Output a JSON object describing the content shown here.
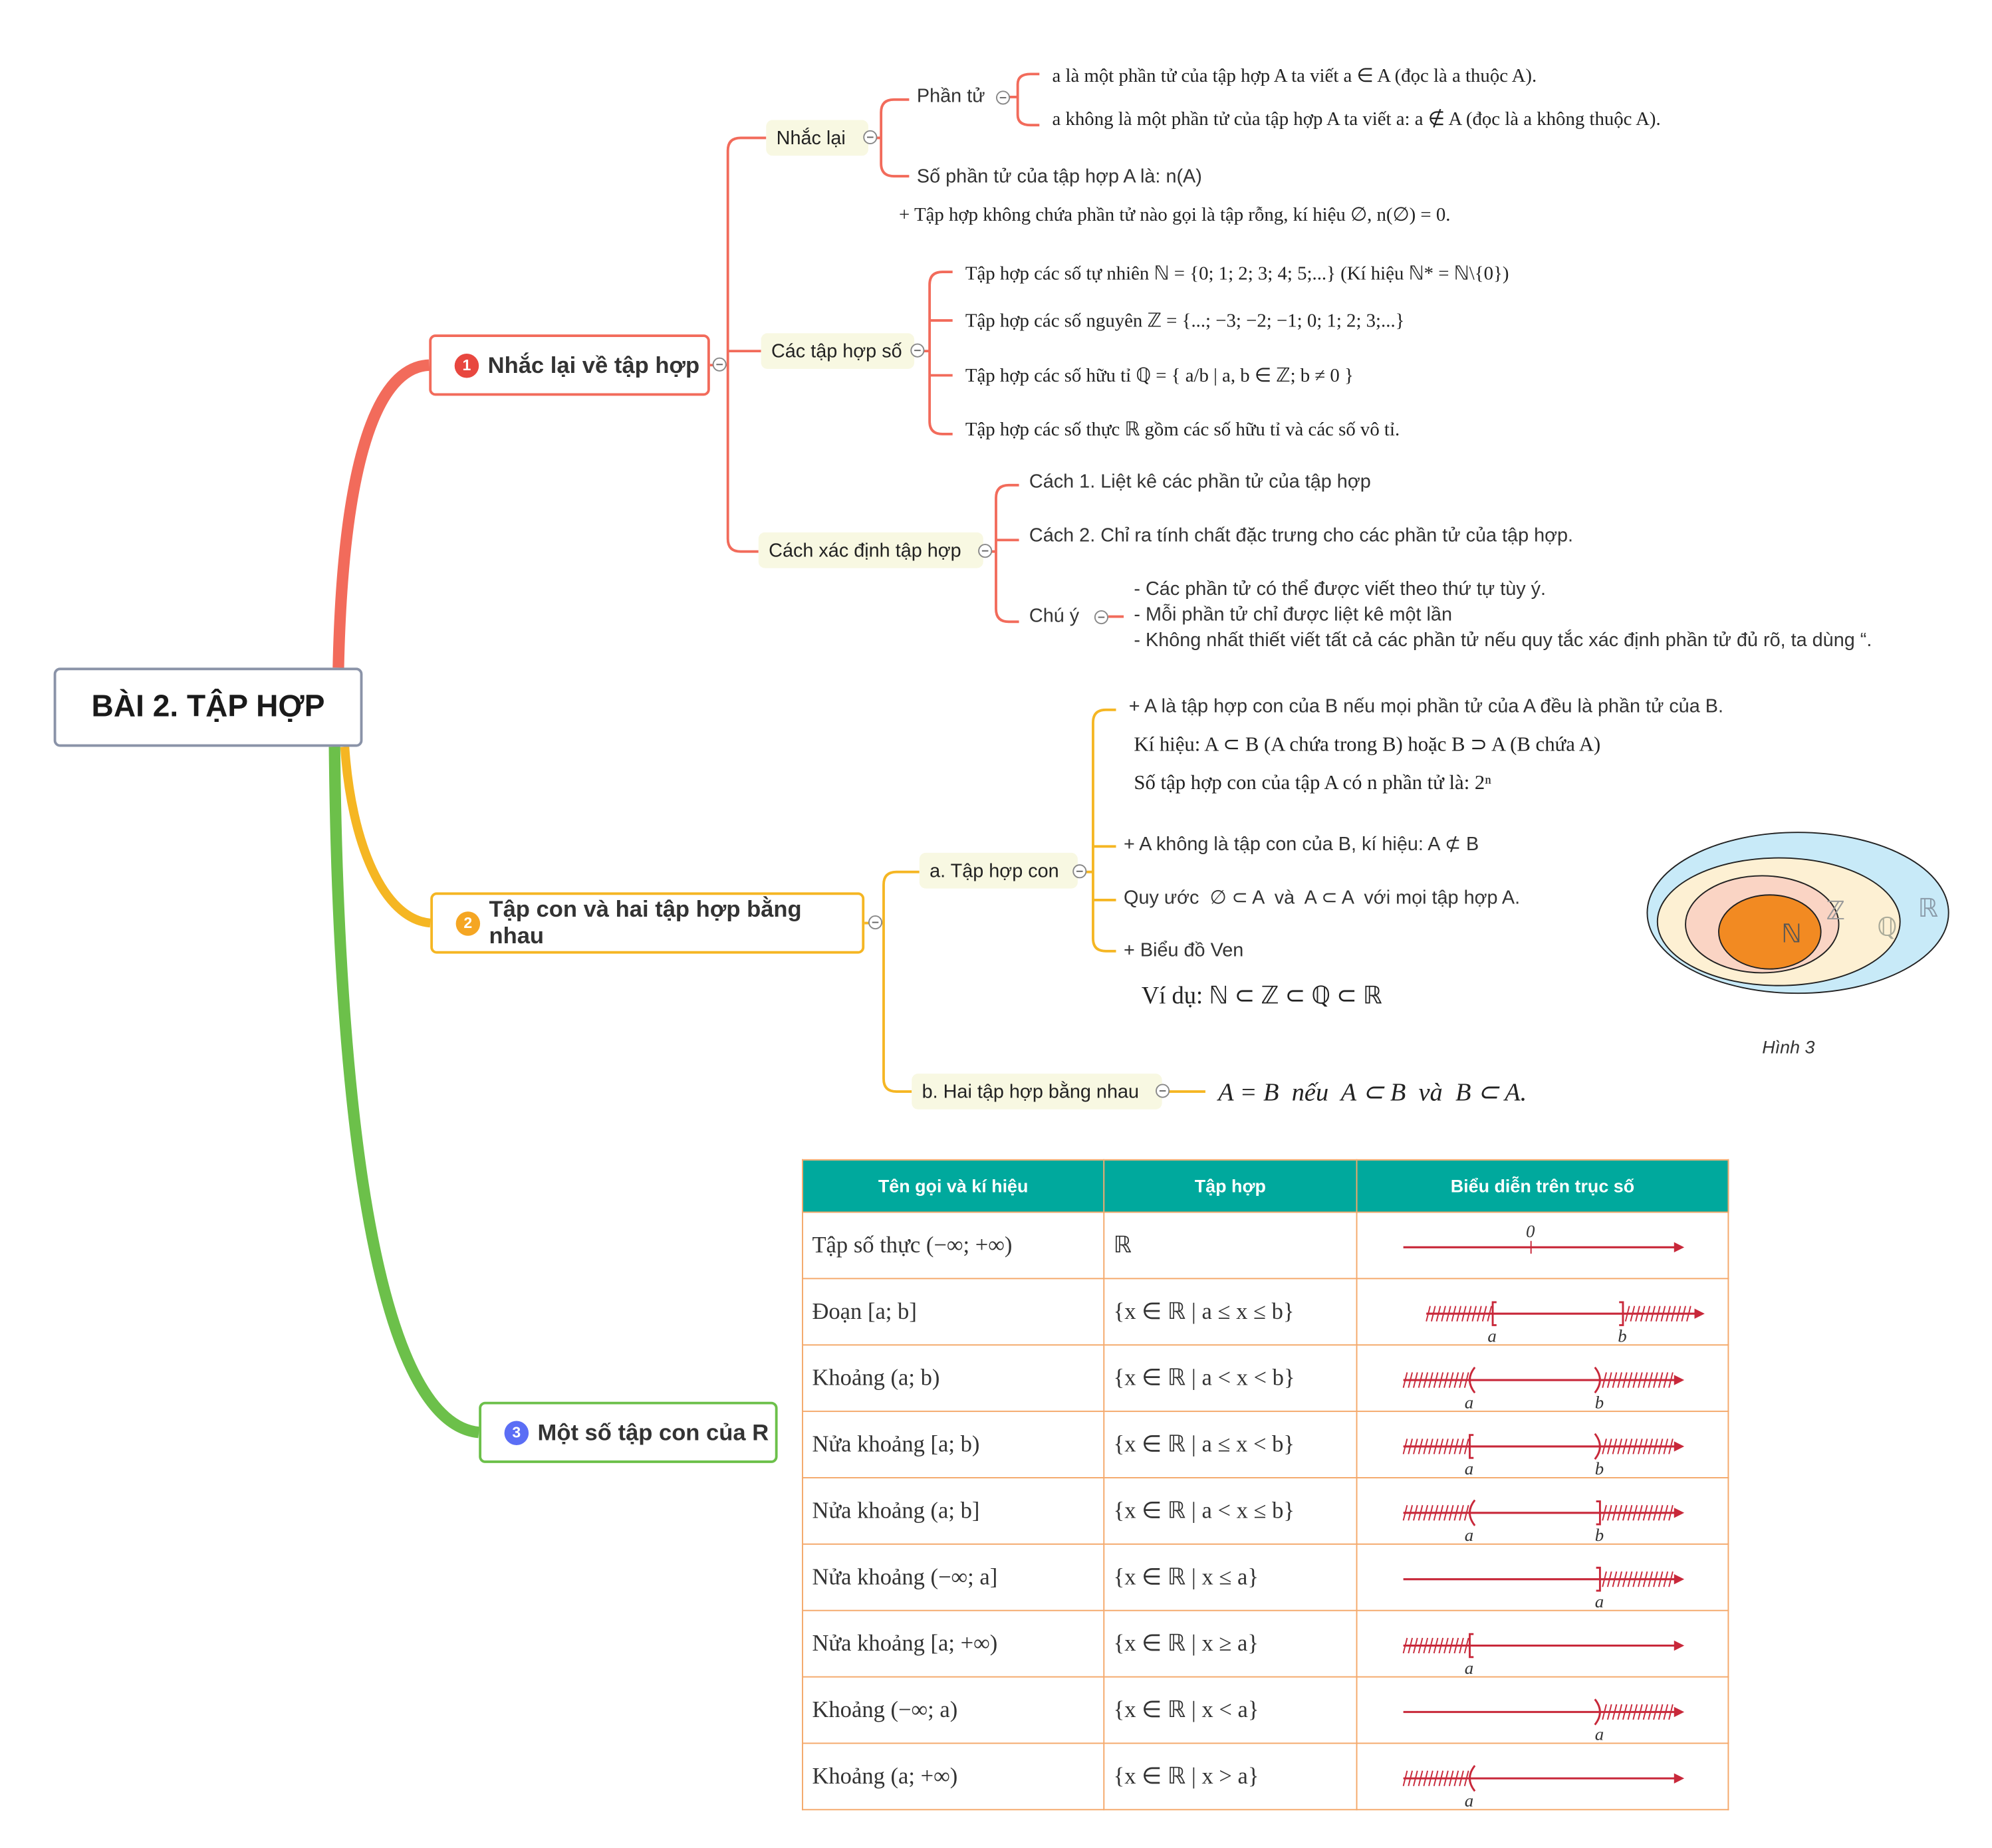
{
  "root": {
    "title": "BÀI 2. TẬP HỢP"
  },
  "branches": [
    {
      "number": "1",
      "label": "Nhắc lại về tập hợp",
      "color": "#f26b5b",
      "badge_color": "#e8473f"
    },
    {
      "number": "2",
      "label": "Tập con và hai tập hợp bằng nhau",
      "color": "#f5b623",
      "badge_color": "#f5a623"
    },
    {
      "number": "3",
      "label": "Một số tập con của R",
      "color": "#6cc04a",
      "badge_color": "#5b6ef5"
    }
  ],
  "recall": {
    "label": "Nhắc lại",
    "element_label": "Phần tử",
    "element_items": [
      "a là một phần tử của tập hợp A ta viết a ∈ A (đọc là a thuộc A).",
      "a không là một phần tử của tập hợp A ta viết a: a ∉ A (đọc là a không thuộc A)."
    ],
    "count": "Số phần tử của tập hợp A là: n(A)",
    "empty_set": "+ Tập hợp không chứa phần tử nào gọi là tập rỗng, kí hiệu ∅, n(∅) = 0."
  },
  "number_sets": {
    "label": "Các tập hợp số",
    "items": [
      "Tập hợp các số tự nhiên ℕ = {0; 1; 2; 3; 4; 5;...} (Kí hiệu ℕ* = ℕ\\{0})",
      "Tập hợp các số nguyên ℤ = {...; −3; −2; −1; 0; 1; 2; 3;...}",
      "Tập hợp các số hữu tỉ ℚ = { a/b | a, b ∈ ℤ; b ≠ 0 }",
      "Tập hợp các số thực ℝ gồm các số hữu tỉ và các số vô tỉ."
    ]
  },
  "define_set": {
    "label": "Cách xác định tập hợp",
    "methods": [
      "Cách 1. Liệt kê các phần tử của tập hợp",
      "Cách 2. Chỉ ra tính chất đặc trưng cho các phần tử của tập hợp."
    ],
    "note_label": "Chú ý",
    "notes": [
      "- Các phần tử có thể được viết theo thứ tự tùy ý.",
      "- Mỗi phần tử chỉ được liệt kê một lần",
      "- Không nhất thiết viết tất cả các phần tử nếu quy tắc xác định phần tử đủ rõ, ta dùng “."
    ]
  },
  "subset": {
    "label": "a. Tập hợp con",
    "lines": [
      "+ A là tập hợp con của B nếu mọi phần tử của A đều là phần tử của B.",
      "Kí hiệu: A ⊂ B (A chứa trong B) hoặc B ⊃ A (B chứa A)",
      "Số tập hợp con của tập A có n phần tử là: 2ⁿ",
      "+ A không là tập con của B, kí hiệu: A ⊄ B",
      "Quy ước  ∅ ⊂ A  và  A ⊂ A  với mọi tập hợp A.",
      "+ Biểu đồ Ven",
      "Ví dụ: ℕ ⊂ ℤ ⊂ ℚ ⊂ ℝ"
    ]
  },
  "equal_sets": {
    "label": "b. Hai tập hợp bằng nhau",
    "text": "A = B  nếu  A ⊂ B  và  B ⊂ A."
  },
  "venn": {
    "labels": {
      "N": "ℕ",
      "Z": "ℤ",
      "Q": "ℚ",
      "R": "ℝ"
    },
    "caption": "Hình 3",
    "colors": {
      "N": "#f28a22",
      "Z": "#fad4c4",
      "Q": "#fdf0d3",
      "R": "#c8eaf8"
    }
  },
  "table": {
    "headers": [
      "Tên gọi và kí hiệu",
      "Tập hợp",
      "Biểu diễn trên trục số"
    ],
    "rows": [
      {
        "name": "Tập số thực (−∞; +∞)",
        "set": "ℝ",
        "axis": {
          "marks": [
            "|"
          ],
          "labels": [
            "0"
          ],
          "hatch": []
        }
      },
      {
        "name": "Đoạn [a; b]",
        "set": "{x ∈ ℝ | a ≤ x ≤ b}",
        "axis": {
          "marks": [
            "[",
            "]"
          ],
          "labels": [
            "a",
            "b"
          ],
          "hatch": [
            "left",
            "right"
          ]
        }
      },
      {
        "name": "Khoảng (a; b)",
        "set": "{x ∈ ℝ | a < x < b}",
        "axis": {
          "marks": [
            "(",
            ")"
          ],
          "labels": [
            "a",
            "b"
          ],
          "hatch": [
            "left",
            "right"
          ]
        }
      },
      {
        "name": "Nửa khoảng [a; b)",
        "set": "{x ∈ ℝ | a ≤ x < b}",
        "axis": {
          "marks": [
            "[",
            ")"
          ],
          "labels": [
            "a",
            "b"
          ],
          "hatch": [
            "left",
            "right"
          ]
        }
      },
      {
        "name": "Nửa khoảng (a; b]",
        "set": "{x ∈ ℝ | a < x ≤ b}",
        "axis": {
          "marks": [
            "(",
            "]"
          ],
          "labels": [
            "a",
            "b"
          ],
          "hatch": [
            "left",
            "right"
          ]
        }
      },
      {
        "name": "Nửa khoảng (−∞; a]",
        "set": "{x ∈ ℝ | x ≤ a}",
        "axis": {
          "marks": [
            "]"
          ],
          "labels": [
            "a"
          ],
          "hatch": [
            "right"
          ]
        }
      },
      {
        "name": "Nửa khoảng [a; +∞)",
        "set": "{x ∈ ℝ | x ≥ a}",
        "axis": {
          "marks": [
            "["
          ],
          "labels": [
            "a"
          ],
          "hatch": [
            "left"
          ]
        }
      },
      {
        "name": "Khoảng (−∞; a)",
        "set": "{x ∈ ℝ | x < a}",
        "axis": {
          "marks": [
            ")"
          ],
          "labels": [
            "a"
          ],
          "hatch": [
            "right"
          ]
        }
      },
      {
        "name": "Khoảng (a; +∞)",
        "set": "{x ∈ ℝ | x > a}",
        "axis": {
          "marks": [
            "("
          ],
          "labels": [
            "a"
          ],
          "hatch": [
            "left"
          ]
        }
      }
    ],
    "header_color": "#00a99d",
    "border_color": "#f4a86a",
    "axis_color": "#c8283a"
  }
}
